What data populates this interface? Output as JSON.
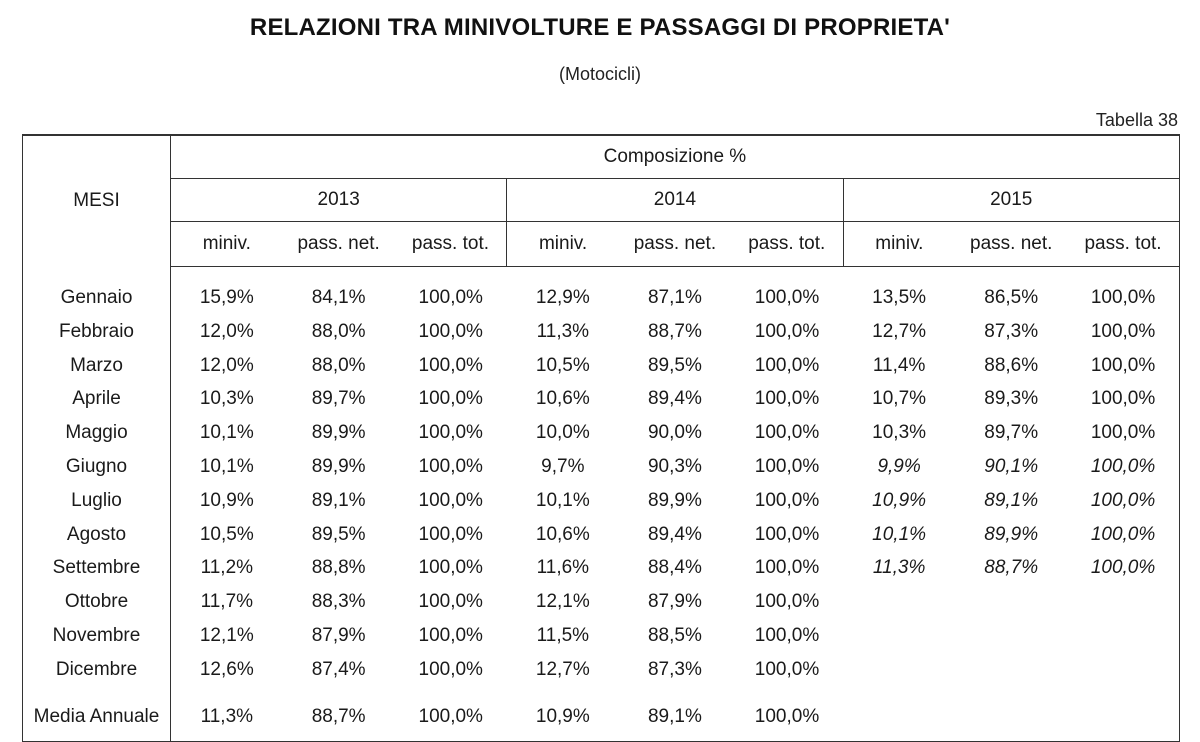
{
  "title": "RELAZIONI TRA MINIVOLTURE E PASSAGGI DI PROPRIETA'",
  "subtitle": "(Motocicli)",
  "table_ref": "Tabella 38",
  "table": {
    "header_mesi": "MESI",
    "header_group": "Composizione %",
    "years": [
      "2013",
      "2014",
      "2015"
    ],
    "sub_headers": [
      "miniv.",
      "pass. net.",
      "pass. tot."
    ],
    "rows": [
      {
        "mese": "Gennaio",
        "v": [
          "15,9%",
          "84,1%",
          "100,0%",
          "12,9%",
          "87,1%",
          "100,0%",
          "13,5%",
          "86,5%",
          "100,0%"
        ],
        "italic2015": false
      },
      {
        "mese": "Febbraio",
        "v": [
          "12,0%",
          "88,0%",
          "100,0%",
          "11,3%",
          "88,7%",
          "100,0%",
          "12,7%",
          "87,3%",
          "100,0%"
        ],
        "italic2015": false
      },
      {
        "mese": "Marzo",
        "v": [
          "12,0%",
          "88,0%",
          "100,0%",
          "10,5%",
          "89,5%",
          "100,0%",
          "11,4%",
          "88,6%",
          "100,0%"
        ],
        "italic2015": false
      },
      {
        "mese": "Aprile",
        "v": [
          "10,3%",
          "89,7%",
          "100,0%",
          "10,6%",
          "89,4%",
          "100,0%",
          "10,7%",
          "89,3%",
          "100,0%"
        ],
        "italic2015": false
      },
      {
        "mese": "Maggio",
        "v": [
          "10,1%",
          "89,9%",
          "100,0%",
          "10,0%",
          "90,0%",
          "100,0%",
          "10,3%",
          "89,7%",
          "100,0%"
        ],
        "italic2015": false
      },
      {
        "mese": "Giugno",
        "v": [
          "10,1%",
          "89,9%",
          "100,0%",
          "9,7%",
          "90,3%",
          "100,0%",
          "9,9%",
          "90,1%",
          "100,0%"
        ],
        "italic2015": true
      },
      {
        "mese": "Luglio",
        "v": [
          "10,9%",
          "89,1%",
          "100,0%",
          "10,1%",
          "89,9%",
          "100,0%",
          "10,9%",
          "89,1%",
          "100,0%"
        ],
        "italic2015": true
      },
      {
        "mese": "Agosto",
        "v": [
          "10,5%",
          "89,5%",
          "100,0%",
          "10,6%",
          "89,4%",
          "100,0%",
          "10,1%",
          "89,9%",
          "100,0%"
        ],
        "italic2015": true
      },
      {
        "mese": "Settembre",
        "v": [
          "11,2%",
          "88,8%",
          "100,0%",
          "11,6%",
          "88,4%",
          "100,0%",
          "11,3%",
          "88,7%",
          "100,0%"
        ],
        "italic2015": true
      },
      {
        "mese": "Ottobre",
        "v": [
          "11,7%",
          "88,3%",
          "100,0%",
          "12,1%",
          "87,9%",
          "100,0%",
          "",
          "",
          ""
        ],
        "italic2015": false
      },
      {
        "mese": "Novembre",
        "v": [
          "12,1%",
          "87,9%",
          "100,0%",
          "11,5%",
          "88,5%",
          "100,0%",
          "",
          "",
          ""
        ],
        "italic2015": false
      },
      {
        "mese": "Dicembre",
        "v": [
          "12,6%",
          "87,4%",
          "100,0%",
          "12,7%",
          "87,3%",
          "100,0%",
          "",
          "",
          ""
        ],
        "italic2015": false
      }
    ],
    "media": {
      "mese": "Media Annuale",
      "v": [
        "11,3%",
        "88,7%",
        "100,0%",
        "10,9%",
        "89,1%",
        "100,0%",
        "",
        "",
        ""
      ]
    }
  }
}
